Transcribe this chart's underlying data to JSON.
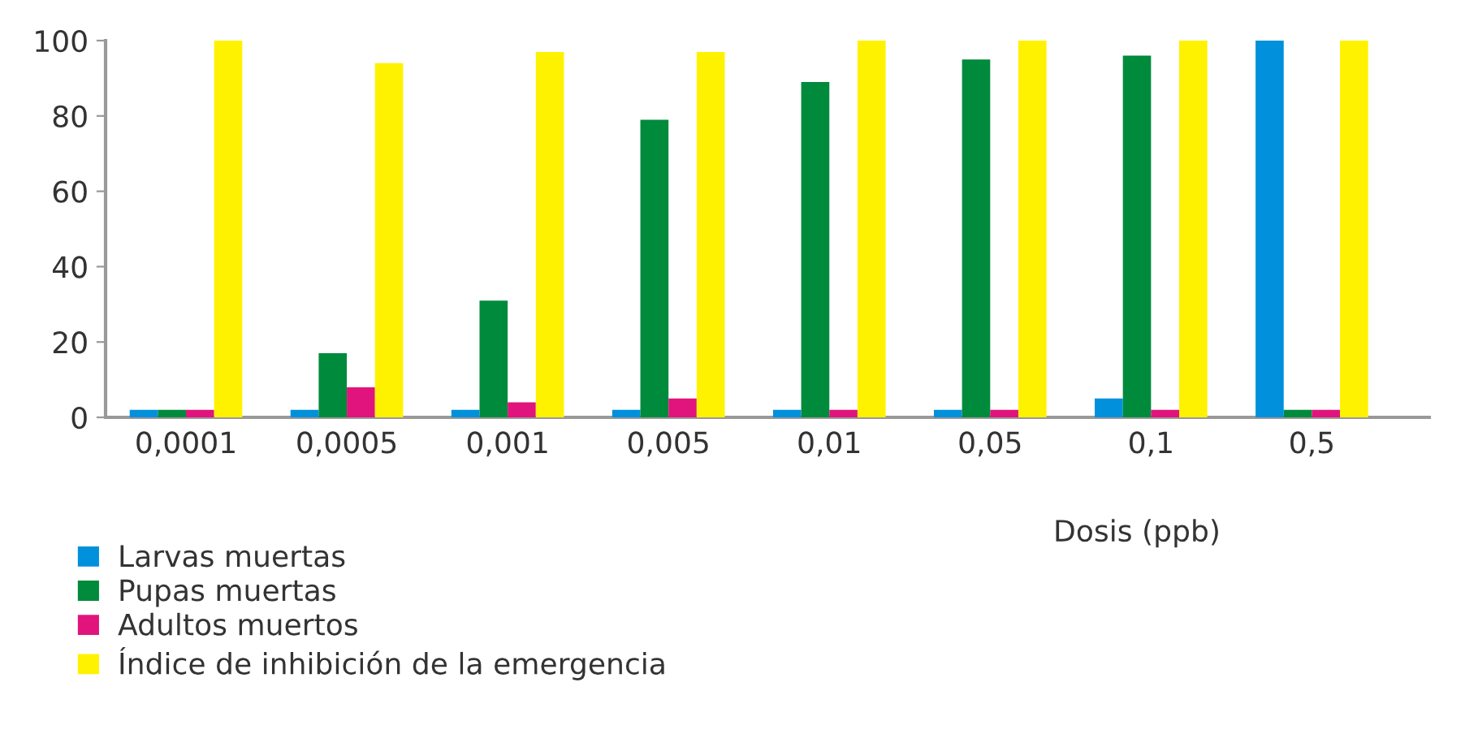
{
  "chart_data": {
    "type": "bar",
    "categories": [
      "0,0001",
      "0,0005",
      "0,001",
      "0,005",
      "0,01",
      "0,05",
      "0,1",
      "0,5"
    ],
    "xlabel": "Dosis (ppb)",
    "series": [
      {
        "name": "Larvas muertas",
        "color": "#0090dc",
        "values": [
          2,
          2,
          2,
          2,
          2,
          2,
          5,
          100
        ]
      },
      {
        "name": "Pupas muertas",
        "color": "#008a3c",
        "values": [
          2,
          17,
          31,
          79,
          89,
          95,
          96,
          2
        ]
      },
      {
        "name": "Adultos muertos",
        "color": "#e0147c",
        "values": [
          2,
          8,
          4,
          5,
          2,
          2,
          2,
          2
        ]
      },
      {
        "name": "Índice de inhibición de la emergencia",
        "color": "#fff200",
        "values": [
          100,
          94,
          97,
          97,
          100,
          100,
          100,
          100
        ]
      }
    ],
    "ylim": [
      0,
      100
    ],
    "yticks": [
      0,
      20,
      40,
      60,
      80,
      100
    ],
    "grid": false,
    "legend": "bottom left"
  }
}
